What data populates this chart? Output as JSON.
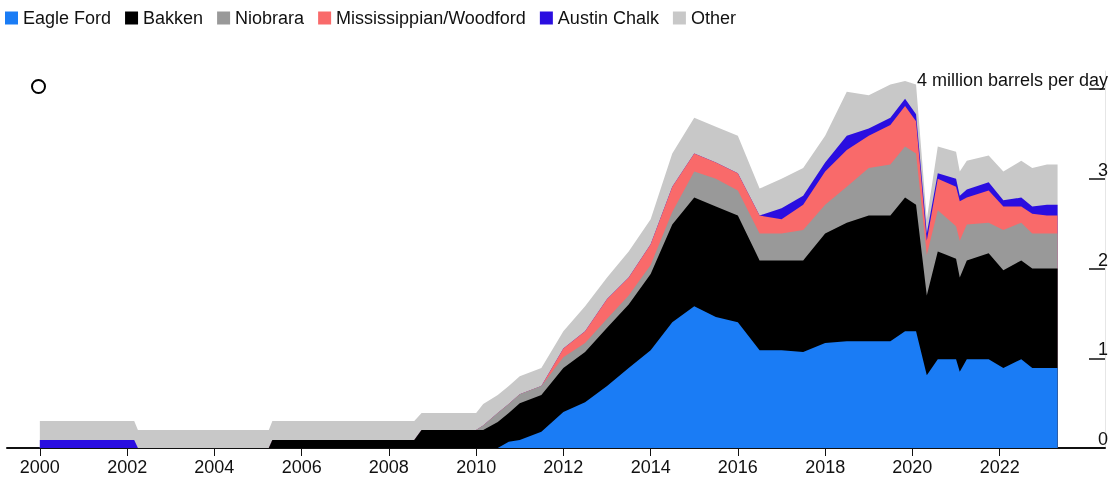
{
  "chart_data": {
    "type": "area",
    "stacked": true,
    "legend": "top left",
    "grid": false,
    "marker": "none",
    "x": [
      "2000-01",
      "2002-03",
      "2002-04",
      "2005-04",
      "2005-05",
      "2008-08",
      "2008-10",
      "2009-01",
      "2010-01",
      "2010-03",
      "2010-07",
      "2010-10",
      "2011-01",
      "2011-07",
      "2012-01",
      "2012-07",
      "2013-01",
      "2013-07",
      "2014-01",
      "2014-07",
      "2015-01",
      "2015-07",
      "2016-01",
      "2016-07",
      "2017-01",
      "2017-07",
      "2018-01",
      "2018-07",
      "2019-01",
      "2019-07",
      "2019-11",
      "2020-02",
      "2020-05",
      "2020-08",
      "2021-01",
      "2021-02",
      "2021-04",
      "2021-10",
      "2022-02",
      "2022-07",
      "2022-10",
      "2023-02",
      "2023-05"
    ],
    "series": [
      {
        "name": "Eagle Ford",
        "color": "#1a7cf5",
        "values": [
          0,
          0,
          0,
          0,
          0,
          0,
          0,
          0,
          0,
          0,
          0,
          0.07,
          0.09,
          0.18,
          0.4,
          0.51,
          0.69,
          0.89,
          1.09,
          1.4,
          1.58,
          1.46,
          1.4,
          1.09,
          1.09,
          1.07,
          1.17,
          1.19,
          1.19,
          1.19,
          1.3,
          1.3,
          0.81,
          0.99,
          0.99,
          0.85,
          0.99,
          0.99,
          0.89,
          0.99,
          0.89,
          0.89,
          0.89
        ]
      },
      {
        "name": "Bakken",
        "color": "#000000",
        "values": [
          0,
          0,
          0,
          0,
          0.09,
          0.09,
          0.2,
          0.2,
          0.2,
          0.2,
          0.29,
          0.32,
          0.41,
          0.41,
          0.49,
          0.56,
          0.65,
          0.71,
          0.85,
          1.09,
          1.21,
          1.23,
          1.19,
          1.0,
          1.0,
          1.02,
          1.22,
          1.32,
          1.4,
          1.4,
          1.49,
          1.41,
          0.89,
          1.2,
          1.12,
          1.05,
          1.1,
          1.18,
          1.09,
          1.1,
          1.11,
          1.11,
          1.11
        ]
      },
      {
        "name": "Niobrara",
        "color": "#999999",
        "values": [
          0,
          0,
          0,
          0,
          0,
          0,
          0,
          0,
          0,
          0.05,
          0.1,
          0.1,
          0.1,
          0.1,
          0.12,
          0.1,
          0.1,
          0.1,
          0.1,
          0.14,
          0.29,
          0.31,
          0.28,
          0.3,
          0.3,
          0.34,
          0.32,
          0.4,
          0.53,
          0.57,
          0.57,
          0.57,
          0.45,
          0.46,
          0.36,
          0.41,
          0.4,
          0.34,
          0.45,
          0.42,
          0.39,
          0.39,
          0.39
        ]
      },
      {
        "name": "Mississippian/Woodford",
        "color": "#f96a6a",
        "values": [
          0,
          0,
          0,
          0,
          0,
          0,
          0,
          0,
          0,
          0,
          0,
          0,
          0,
          0,
          0.1,
          0.13,
          0.22,
          0.2,
          0.23,
          0.28,
          0.2,
          0.18,
          0.19,
          0.2,
          0.16,
          0.28,
          0.37,
          0.41,
          0.36,
          0.44,
          0.45,
          0.36,
          0.16,
          0.35,
          0.44,
          0.44,
          0.3,
          0.36,
          0.26,
          0.18,
          0.22,
          0.2,
          0.2
        ]
      },
      {
        "name": "Austin Chalk",
        "color": "#2a0ee0",
        "values": [
          0.09,
          0.09,
          0,
          0,
          0,
          0,
          0,
          0,
          0,
          0,
          0,
          0,
          0,
          0,
          0,
          0,
          0,
          0,
          0,
          0,
          0,
          0,
          0,
          0,
          0.12,
          0.1,
          0.1,
          0.16,
          0.08,
          0.08,
          0.08,
          0.08,
          0.08,
          0.06,
          0.09,
          0.06,
          0.09,
          0.09,
          0.07,
          0.1,
          0.08,
          0.12,
          0.12
        ]
      },
      {
        "name": "Other",
        "color": "#c8c8c8",
        "values": [
          0.21,
          0.21,
          0.2,
          0.2,
          0.21,
          0.21,
          0.19,
          0.19,
          0.19,
          0.24,
          0.2,
          0.2,
          0.2,
          0.2,
          0.19,
          0.28,
          0.24,
          0.29,
          0.28,
          0.37,
          0.4,
          0.4,
          0.42,
          0.3,
          0.33,
          0.31,
          0.3,
          0.49,
          0.37,
          0.37,
          0.2,
          0.33,
          0.16,
          0.3,
          0.3,
          0.27,
          0.32,
          0.3,
          0.32,
          0.41,
          0.43,
          0.45,
          0.45
        ]
      }
    ],
    "xlim": [
      "1999-04",
      "2024-06"
    ],
    "xticks": [
      "2000",
      "2002",
      "2004",
      "2006",
      "2008",
      "2010",
      "2012",
      "2014",
      "2016",
      "2018",
      "2020",
      "2022"
    ],
    "ylim": [
      0,
      4.2
    ],
    "yticks": [
      0,
      1,
      2,
      3,
      {
        "value": 4,
        "label": "4 million barrels per day"
      }
    ]
  }
}
